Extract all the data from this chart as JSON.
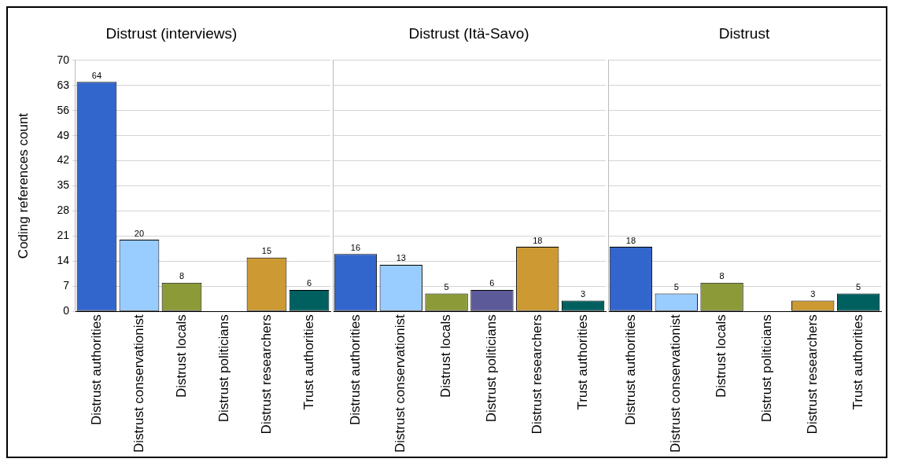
{
  "chart_data": [
    {
      "type": "bar",
      "title": "Distrust (interviews)",
      "ylabel": "Coding references count",
      "categories": [
        "Distrust authorities",
        "Distrust conservationist",
        "Distrust locals",
        "Distrust politicians",
        "Distrust researchers",
        "Trust authorities"
      ],
      "values": [
        64,
        20,
        8,
        0,
        15,
        6
      ],
      "value_labels": [
        "64",
        "20",
        "8",
        null,
        "15",
        "6"
      ],
      "colors": [
        "#3366cc",
        "#99ccff",
        "#8c9a38",
        "#5c5a99",
        "#cc9933",
        "#006060"
      ],
      "ylim": [
        0,
        70
      ],
      "yticks": [
        0,
        7,
        14,
        21,
        28,
        35,
        42,
        49,
        56,
        63,
        70
      ],
      "grid": "y"
    },
    {
      "type": "bar",
      "title": "Distrust (Itä-Savo)",
      "categories": [
        "Distrust authorities",
        "Distrust conservationist",
        "Distrust locals",
        "Distrust politicians",
        "Distrust researchers",
        "Trust authorities"
      ],
      "values": [
        16,
        13,
        5,
        6,
        18,
        3
      ],
      "value_labels": [
        "16",
        "13",
        "5",
        "6",
        "18",
        "3"
      ],
      "colors": [
        "#3366cc",
        "#99ccff",
        "#8c9a38",
        "#5c5a99",
        "#cc9933",
        "#006060"
      ],
      "ylim": [
        0,
        70
      ],
      "yticks": [
        0,
        7,
        14,
        21,
        28,
        35,
        42,
        49,
        56,
        63,
        70
      ],
      "grid": "y",
      "tick_labels": "x"
    },
    {
      "type": "bar",
      "title": "Distrust",
      "categories": [
        "Distrust authorities",
        "Distrust conservationist",
        "Distrust locals",
        "Distrust politicians",
        "Distrust researchers",
        "Trust authorities"
      ],
      "values": [
        18,
        5,
        8,
        0,
        3,
        5
      ],
      "value_labels": [
        "18",
        "5",
        "8",
        null,
        "3",
        "5"
      ],
      "colors": [
        "#3366cc",
        "#99ccff",
        "#8c9a38",
        "#5c5a99",
        "#cc9933",
        "#006060"
      ],
      "ylim": [
        0,
        70
      ],
      "yticks": [
        0,
        7,
        14,
        21,
        28,
        35,
        42,
        49,
        56,
        63,
        70
      ],
      "grid": "y",
      "tick_labels": "x"
    }
  ]
}
